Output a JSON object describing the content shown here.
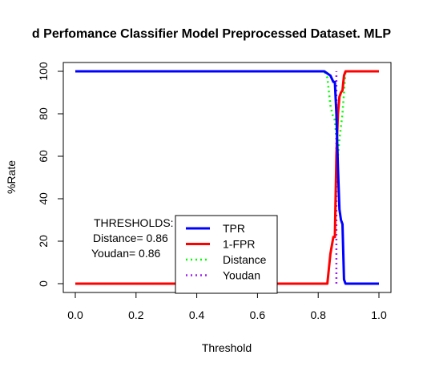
{
  "chart_data": {
    "type": "line",
    "title": "d Perfomance Classifier Model Preprocessed Dataset. MLP",
    "xlabel": "Threshold",
    "ylabel": "%Rate",
    "xlim": [
      0,
      1
    ],
    "ylim": [
      0,
      100
    ],
    "x_ticks": [
      "0.0",
      "0.2",
      "0.4",
      "0.6",
      "0.8",
      "1.0"
    ],
    "y_ticks": [
      "0",
      "20",
      "40",
      "60",
      "80",
      "100"
    ],
    "grid": false,
    "legend_position": "bottom-center",
    "series": [
      {
        "name": "TPR",
        "color": "#0000ff",
        "line_style": "solid",
        "x": [
          0.0,
          0.8,
          0.82,
          0.84,
          0.85,
          0.855,
          0.86,
          0.865,
          0.87,
          0.875,
          0.88,
          0.885,
          0.89,
          0.91,
          1.0
        ],
        "y": [
          100,
          100,
          100,
          98,
          95,
          95,
          80,
          55,
          35,
          30,
          28,
          2,
          0,
          0,
          0
        ]
      },
      {
        "name": "1-FPR",
        "color": "#ff0000",
        "line_style": "solid",
        "x": [
          0.0,
          0.82,
          0.83,
          0.84,
          0.85,
          0.855,
          0.86,
          0.865,
          0.87,
          0.875,
          0.88,
          0.885,
          0.89,
          0.91,
          1.0
        ],
        "y": [
          0,
          0,
          0,
          14,
          22,
          22,
          60,
          80,
          88,
          90,
          91,
          98,
          100,
          100,
          100
        ]
      },
      {
        "name": "Distance",
        "color": "#00ff00",
        "line_style": "dotted",
        "x": [
          0.0,
          0.82,
          0.83,
          0.84,
          0.85,
          0.855,
          0.86,
          0.865,
          0.87,
          0.88,
          0.89,
          0.91,
          1.0
        ],
        "y": [
          100,
          100,
          97,
          84,
          78,
          77,
          68,
          60,
          68,
          80,
          100,
          100,
          100
        ]
      },
      {
        "name": "Youdan",
        "color": "#a020f0",
        "line_style": "dotted",
        "x": [
          0.86,
          0.86
        ],
        "y": [
          0,
          100
        ]
      }
    ],
    "annotations": {
      "line1": "THRESHOLDS:",
      "line2": "Distance= 0.86",
      "line3": "Youdan= 0.86"
    }
  }
}
